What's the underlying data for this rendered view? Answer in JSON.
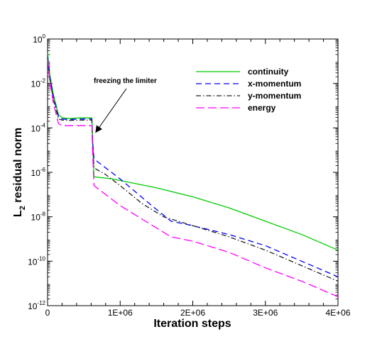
{
  "chart_data": {
    "type": "line",
    "xlabel": "Iteration steps",
    "ylabel": {
      "base": "L",
      "sub": "2",
      "rest": " residual norm"
    },
    "xlim": [
      0,
      4000000
    ],
    "ylim_exp": [
      -12,
      0
    ],
    "y_scale": "log",
    "x_ticks": [
      {
        "value": 0,
        "label": "0"
      },
      {
        "value": 1000000,
        "label": "1E+06"
      },
      {
        "value": 2000000,
        "label": "2E+06"
      },
      {
        "value": 3000000,
        "label": "3E+06"
      },
      {
        "value": 4000000,
        "label": "4E+06"
      }
    ],
    "y_ticks": [
      {
        "exp": 0,
        "label": "0"
      },
      {
        "exp": -2,
        "label": "-2"
      },
      {
        "exp": -4,
        "label": "-4"
      },
      {
        "exp": -6,
        "label": "-6"
      },
      {
        "exp": -8,
        "label": "-8"
      },
      {
        "exp": -10,
        "label": "-10"
      },
      {
        "exp": -12,
        "label": "-12"
      }
    ],
    "y_tick_base": "10",
    "legend_position": "top-right",
    "grid": false,
    "annotation": {
      "text": "freezing the limiter",
      "x": 620000,
      "y_exp": -4.3
    },
    "series": [
      {
        "name": "continuity",
        "color": "#00cc00",
        "dash": "",
        "points": [
          [
            0,
            -0.6
          ],
          [
            30000,
            -1.6
          ],
          [
            80000,
            -2.5
          ],
          [
            150000,
            -3.4
          ],
          [
            200000,
            -3.55
          ],
          [
            300000,
            -3.58
          ],
          [
            450000,
            -3.55
          ],
          [
            610000,
            -3.55
          ],
          [
            620000,
            -4.5
          ],
          [
            640000,
            -6.2
          ],
          [
            900000,
            -6.3
          ],
          [
            1500000,
            -6.7
          ],
          [
            2000000,
            -7.1
          ],
          [
            2500000,
            -7.6
          ],
          [
            3000000,
            -8.2
          ],
          [
            3500000,
            -8.8
          ],
          [
            4000000,
            -9.5
          ]
        ]
      },
      {
        "name": "x-momentum",
        "color": "#0000ff",
        "dash": "8,5",
        "points": [
          [
            0,
            -0.8
          ],
          [
            30000,
            -1.7
          ],
          [
            80000,
            -2.6
          ],
          [
            150000,
            -3.5
          ],
          [
            200000,
            -3.6
          ],
          [
            300000,
            -3.62
          ],
          [
            450000,
            -3.6
          ],
          [
            610000,
            -3.6
          ],
          [
            620000,
            -4.6
          ],
          [
            640000,
            -5.4
          ],
          [
            800000,
            -5.8
          ],
          [
            1000000,
            -6.3
          ],
          [
            1400000,
            -7.4
          ],
          [
            1700000,
            -8.2
          ],
          [
            2000000,
            -8.4
          ],
          [
            2500000,
            -8.8
          ],
          [
            3000000,
            -9.3
          ],
          [
            3500000,
            -10.0
          ],
          [
            4000000,
            -10.7
          ]
        ]
      },
      {
        "name": "y-momentum",
        "color": "#222222",
        "dash": "7,3,1.5,3",
        "points": [
          [
            0,
            -0.9
          ],
          [
            30000,
            -1.8
          ],
          [
            80000,
            -2.7
          ],
          [
            150000,
            -3.6
          ],
          [
            200000,
            -3.65
          ],
          [
            300000,
            -3.66
          ],
          [
            450000,
            -3.65
          ],
          [
            610000,
            -3.65
          ],
          [
            620000,
            -4.7
          ],
          [
            640000,
            -5.8
          ],
          [
            800000,
            -6.1
          ],
          [
            1000000,
            -6.6
          ],
          [
            1300000,
            -7.4
          ],
          [
            1600000,
            -8.0
          ],
          [
            2000000,
            -8.4
          ],
          [
            2500000,
            -8.9
          ],
          [
            3000000,
            -9.5
          ],
          [
            3500000,
            -10.2
          ],
          [
            4000000,
            -10.9
          ]
        ]
      },
      {
        "name": "energy",
        "color": "#ff00ff",
        "dash": "12,5",
        "points": [
          [
            0,
            -0.9
          ],
          [
            30000,
            -1.9
          ],
          [
            80000,
            -2.9
          ],
          [
            150000,
            -3.8
          ],
          [
            200000,
            -3.9
          ],
          [
            300000,
            -3.9
          ],
          [
            450000,
            -3.9
          ],
          [
            610000,
            -3.9
          ],
          [
            620000,
            -5.1
          ],
          [
            640000,
            -6.6
          ],
          [
            800000,
            -7.0
          ],
          [
            1000000,
            -7.5
          ],
          [
            1400000,
            -8.3
          ],
          [
            1700000,
            -8.9
          ],
          [
            2000000,
            -9.1
          ],
          [
            2500000,
            -9.6
          ],
          [
            3000000,
            -10.3
          ],
          [
            3500000,
            -10.9
          ],
          [
            4000000,
            -11.6
          ]
        ]
      }
    ]
  }
}
